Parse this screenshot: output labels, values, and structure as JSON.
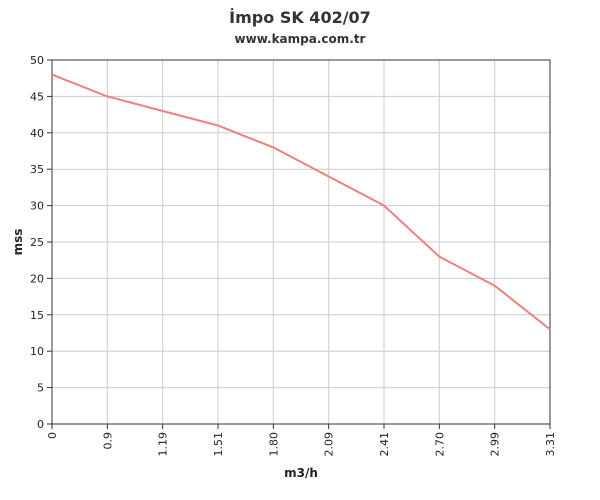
{
  "chart_data": {
    "type": "line",
    "title": "İmpo SK 402/07",
    "subtitle": "www.kampa.com.tr",
    "xlabel": "m3/h",
    "ylabel": "mss",
    "x": [
      "0",
      "0.9",
      "1.19",
      "1.51",
      "1.80",
      "2.09",
      "2.41",
      "2.70",
      "2.99",
      "3.31"
    ],
    "series": [
      {
        "values": [
          48,
          45,
          43,
          41,
          38,
          34,
          30,
          23,
          19,
          13
        ]
      }
    ],
    "ylim": [
      0,
      50
    ],
    "yticks": [
      0,
      5,
      10,
      15,
      20,
      25,
      30,
      35,
      40,
      45,
      50
    ],
    "grid": true,
    "legend": "none",
    "line_color": "#f08080",
    "grid_color": "#cccccc",
    "axis_color": "#333333"
  }
}
